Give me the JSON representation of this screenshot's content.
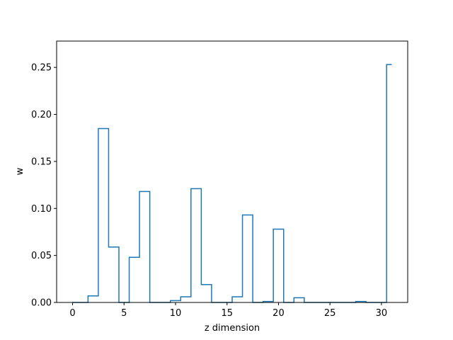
{
  "chart_data": {
    "type": "line",
    "style": "steps-mid",
    "title": "",
    "xlabel": "z dimension",
    "ylabel": "w",
    "xlim": [
      -1.55,
      32.55
    ],
    "ylim": [
      0,
      0.278
    ],
    "xticks": [
      0,
      5,
      10,
      15,
      20,
      25,
      30
    ],
    "yticks": [
      0.0,
      0.05,
      0.1,
      0.15,
      0.2,
      0.25
    ],
    "xtick_labels": [
      "0",
      "5",
      "10",
      "15",
      "20",
      "25",
      "30"
    ],
    "ytick_labels": [
      "0.00",
      "0.05",
      "0.10",
      "0.15",
      "0.20",
      "0.25"
    ],
    "grid": false,
    "color": "#1f77b4",
    "x": [
      0,
      1,
      2,
      3,
      4,
      5,
      6,
      7,
      8,
      9,
      10,
      11,
      12,
      13,
      14,
      15,
      16,
      17,
      18,
      19,
      20,
      21,
      22,
      23,
      24,
      25,
      26,
      27,
      28,
      29,
      30,
      31
    ],
    "values": [
      0.0,
      0.0,
      0.007,
      0.185,
      0.059,
      0.0,
      0.048,
      0.118,
      0.0,
      0.0,
      0.002,
      0.006,
      0.121,
      0.019,
      0.0,
      0.0,
      0.006,
      0.093,
      0.0,
      0.001,
      0.078,
      0.0,
      0.005,
      0.0,
      0.0,
      0.0,
      0.0,
      0.0,
      0.001,
      0.0,
      0.0,
      0.253
    ]
  }
}
